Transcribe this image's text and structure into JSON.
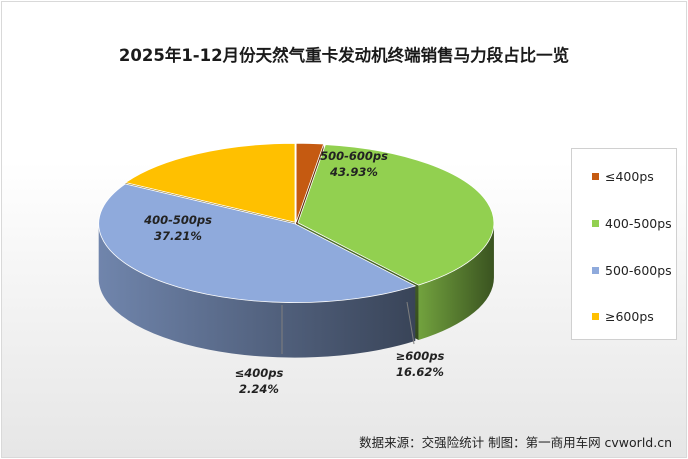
{
  "chart_data": {
    "type": "pie",
    "title": "2025年1-12月份天然气重卡发动机终端销售马力段占比一览",
    "slices": [
      {
        "name": "≤400ps",
        "value": 2.24,
        "label": "2.24%",
        "color": "#c55a11"
      },
      {
        "name": "400-500ps",
        "value": 37.21,
        "label": "37.21%",
        "color": "#92d050"
      },
      {
        "name": "500-600ps",
        "value": 43.93,
        "label": "43.93%",
        "color": "#8faadc"
      },
      {
        "name": "≥600ps",
        "value": 16.62,
        "label": "16.62%",
        "color": "#ffc000"
      }
    ],
    "legend_position": "right"
  },
  "source_text": "数据来源：交强险统计  制图：第一商用车网 cvworld.cn"
}
